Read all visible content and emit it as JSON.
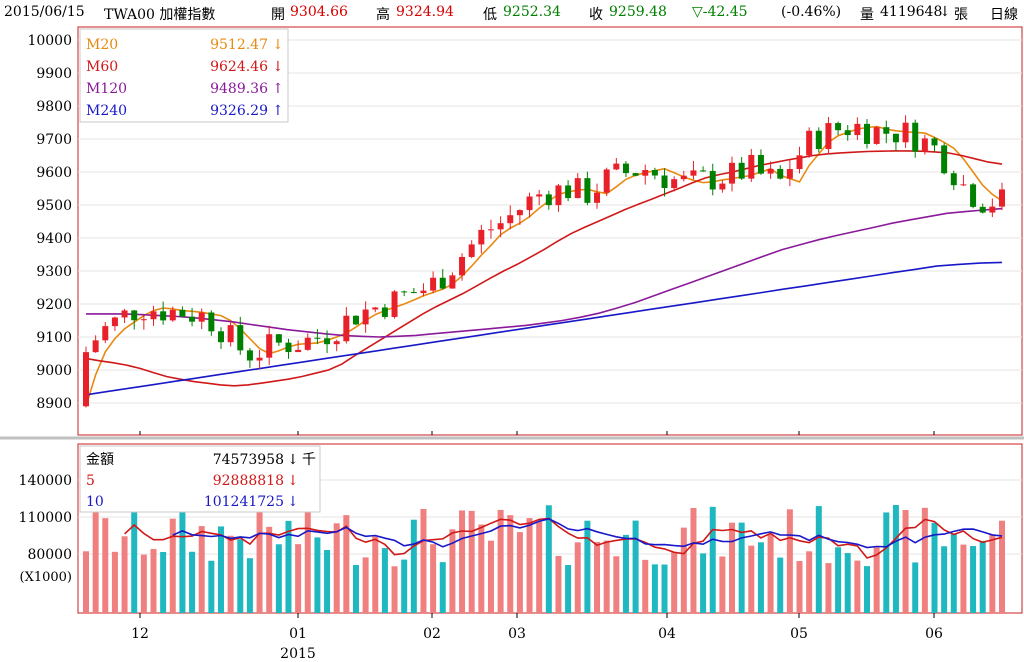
{
  "header": {
    "date": "2015/06/15",
    "symbol": "TWA00 加權指數",
    "open_label": "開",
    "open": "9304.66",
    "high_label": "高",
    "high": "9324.94",
    "low_label": "低",
    "low": "9252.34",
    "close_label": "收",
    "close": "9259.48",
    "change": "▽-42.45",
    "change_pct": "(-0.46%)",
    "volume_label": "量",
    "volume": "4119648",
    "volume_arrow": "↓",
    "volume_unit": "張",
    "period": "日線"
  },
  "colors": {
    "up": "#e8202a",
    "down": "#008000",
    "ma20": "#e88a10",
    "ma60": "#d01818",
    "ma120": "#8a1a9a",
    "ma240": "#1818c8",
    "vol_up": "#f08080",
    "vol_down": "#20b8c0",
    "vol_ma5": "#d01818",
    "vol_ma10": "#1818c8",
    "frame": "#c82020"
  },
  "price_legend": [
    {
      "name": "M20",
      "value": "9512.47",
      "arrow": "↓",
      "color": "#e88a10"
    },
    {
      "name": "M60",
      "value": "9624.46",
      "arrow": "↓",
      "color": "#d01818"
    },
    {
      "name": "M120",
      "value": "9489.36",
      "arrow": "↑",
      "color": "#8a1a9a"
    },
    {
      "name": "M240",
      "value": "9326.29",
      "arrow": "↑",
      "color": "#1818c8"
    }
  ],
  "volume_legend": [
    {
      "name": "金額",
      "value": "74573958",
      "arrow": "↓",
      "unit": "千",
      "color": "#000000"
    },
    {
      "name": "5",
      "value": "92888818",
      "arrow": "↓",
      "unit": "",
      "color": "#d01818"
    },
    {
      "name": "10",
      "value": "101241725",
      "arrow": "↓",
      "unit": "",
      "color": "#1818c8"
    }
  ],
  "price_axis": {
    "min": 8800,
    "max": 10050,
    "ticks": [
      10000,
      9900,
      9800,
      9700,
      9600,
      9500,
      9400,
      9300,
      9200,
      9100,
      9000,
      8900
    ]
  },
  "volume_axis": {
    "min": 50000,
    "max": 160000,
    "ticks": [
      140000,
      110000,
      80000
    ],
    "unit_label": "(X1000)"
  },
  "x_axis": {
    "labels": [
      "12",
      "01",
      "02",
      "03",
      "04",
      "05",
      "06"
    ],
    "year_label": "2015"
  },
  "chart_data": {
    "type": "candlestick",
    "series": [
      {
        "name": "M20",
        "values": [
          8890,
          8985,
          9055,
          9095,
          9125,
          9145,
          9165,
          9180,
          9188,
          9185,
          9180,
          9178,
          9175,
          9170,
          9165,
          9150,
          9125,
          9095,
          9065,
          9050,
          9058,
          9070,
          9078,
          9080,
          9082,
          9090,
          9100,
          9112,
          9130,
          9150,
          9168,
          9180,
          9190,
          9200,
          9212,
          9225,
          9235,
          9245,
          9260,
          9285,
          9315,
          9348,
          9378,
          9410,
          9430,
          9445,
          9465,
          9490,
          9512,
          9532,
          9540,
          9545,
          9548,
          9540,
          9535,
          9555,
          9578,
          9590,
          9598,
          9604,
          9610,
          9598,
          9585,
          9575,
          9568,
          9570,
          9576,
          9580,
          9585,
          9590,
          9600,
          9610,
          9590,
          9580,
          9570,
          9620,
          9655,
          9690,
          9710,
          9720,
          9730,
          9735,
          9738,
          9730,
          9725,
          9722,
          9720,
          9718,
          9705,
          9690,
          9672,
          9640,
          9600,
          9560,
          9532,
          9512
        ]
      },
      {
        "name": "M60",
        "values": [
          9035,
          9028,
          9022,
          9015,
          9005,
          8992,
          8980,
          8972,
          8965,
          8960,
          8955,
          8952,
          8955,
          8960,
          8966,
          8972,
          8980,
          8990,
          9000,
          9018,
          9045,
          9070,
          9095,
          9120,
          9145,
          9170,
          9192,
          9212,
          9232,
          9255,
          9278,
          9300,
          9320,
          9342,
          9365,
          9390,
          9413,
          9432,
          9450,
          9468,
          9486,
          9502,
          9518,
          9534,
          9550,
          9567,
          9582,
          9592,
          9600,
          9610,
          9620,
          9628,
          9636,
          9643,
          9650,
          9655,
          9658,
          9660,
          9662,
          9663,
          9664,
          9664,
          9663,
          9661,
          9658,
          9650,
          9640,
          9630,
          9624
        ]
      },
      {
        "name": "M120",
        "values": [
          9170,
          9170,
          9170,
          9168,
          9165,
          9162,
          9158,
          9152,
          9146,
          9138,
          9130,
          9122,
          9116,
          9110,
          9105,
          9102,
          9100,
          9102,
          9105,
          9110,
          9115,
          9120,
          9125,
          9130,
          9135,
          9142,
          9150,
          9160,
          9172,
          9188,
          9205,
          9225,
          9245,
          9265,
          9285,
          9305,
          9325,
          9345,
          9365,
          9380,
          9395,
          9408,
          9420,
          9432,
          9445,
          9455,
          9465,
          9475,
          9480,
          9485,
          9489
        ]
      },
      {
        "name": "M240",
        "values": [
          8925,
          8935,
          8945,
          8955,
          8965,
          8975,
          8985,
          8995,
          9005,
          9015,
          9025,
          9035,
          9045,
          9055,
          9065,
          9075,
          9085,
          9095,
          9105,
          9115,
          9125,
          9135,
          9145,
          9155,
          9165,
          9175,
          9185,
          9195,
          9205,
          9215,
          9225,
          9235,
          9245,
          9255,
          9265,
          9275,
          9285,
          9295,
          9305,
          9315,
          9320,
          9324,
          9326
        ]
      }
    ]
  }
}
